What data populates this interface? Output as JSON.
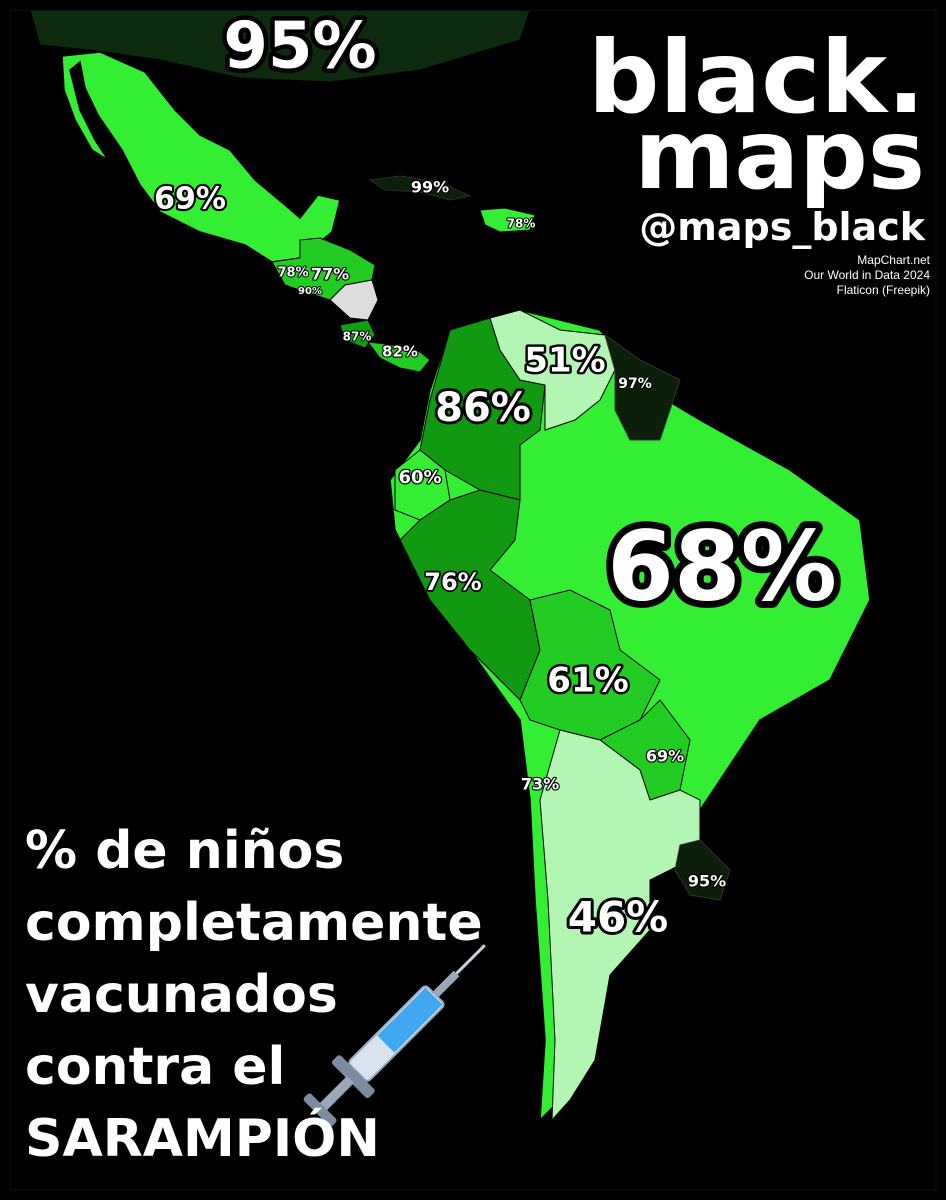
{
  "brand": {
    "line1": "black.",
    "line2": "maps",
    "handle": "@maps_black"
  },
  "sources": [
    "MapChart.net",
    "Our World in Data 2024",
    "Flaticon (Freepik)"
  ],
  "title_lines": [
    "% de niños",
    "completamente",
    "vacunados",
    "contra el",
    "SARAMPIÓN"
  ],
  "regions": [
    {
      "label": "95%"
    },
    {
      "label": "69%"
    },
    {
      "label": "99%"
    },
    {
      "label": "78%"
    },
    {
      "label": "78%"
    },
    {
      "label": "77%"
    },
    {
      "label": "90%"
    },
    {
      "label": "87%"
    },
    {
      "label": "82%"
    },
    {
      "label": "51%"
    },
    {
      "label": "97%"
    },
    {
      "label": "86%"
    },
    {
      "label": "60%"
    },
    {
      "label": "68%"
    },
    {
      "label": "76%"
    },
    {
      "label": "61%"
    },
    {
      "label": "69%"
    },
    {
      "label": "73%"
    },
    {
      "label": "46%"
    },
    {
      "label": "95%"
    }
  ]
}
